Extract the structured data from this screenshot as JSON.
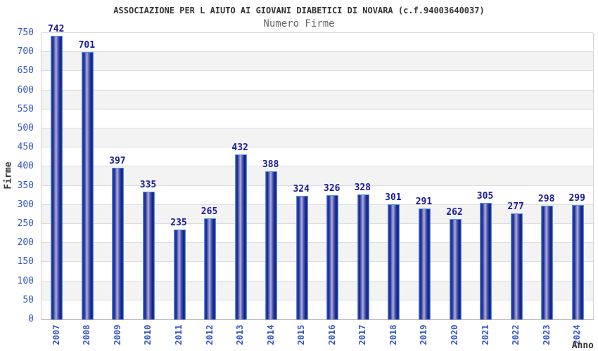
{
  "header": {
    "title": "ASSOCIAZIONE PER L AIUTO AI GIOVANI DIABETICI DI NOVARA (c.f.94003640037)",
    "subtitle": "Numero Firme"
  },
  "chart_data": {
    "type": "bar",
    "title": "ASSOCIAZIONE PER L AIUTO AI GIOVANI DIABETICI DI NOVARA (c.f.94003640037)",
    "subtitle": "Numero Firme",
    "xlabel": "Anno",
    "ylabel": "Firme",
    "categories": [
      "2007",
      "2008",
      "2009",
      "2010",
      "2011",
      "2012",
      "2013",
      "2014",
      "2015",
      "2016",
      "2017",
      "2018",
      "2019",
      "2020",
      "2021",
      "2022",
      "2023",
      "2024"
    ],
    "values": [
      742,
      701,
      397,
      335,
      235,
      265,
      432,
      388,
      324,
      326,
      328,
      301,
      291,
      262,
      305,
      277,
      298,
      299
    ],
    "ylim": [
      0,
      750
    ],
    "ytick_step": 50,
    "grid": "alternating horizontal bands every 50 units",
    "legend": "none",
    "colors": {
      "bar_border": "#4a96ec",
      "bar_dark": "#1b2590",
      "bar_highlight": "#aab1e0",
      "axis_tick_label": "#3355cc",
      "value_label": "#1a1a99",
      "axis_title": "#333333",
      "band_gray": "#f3f3f3",
      "band_white": "#ffffff",
      "gridline": "#dcdcdc",
      "title_color": "#333333",
      "subtitle_color": "#666666"
    }
  }
}
